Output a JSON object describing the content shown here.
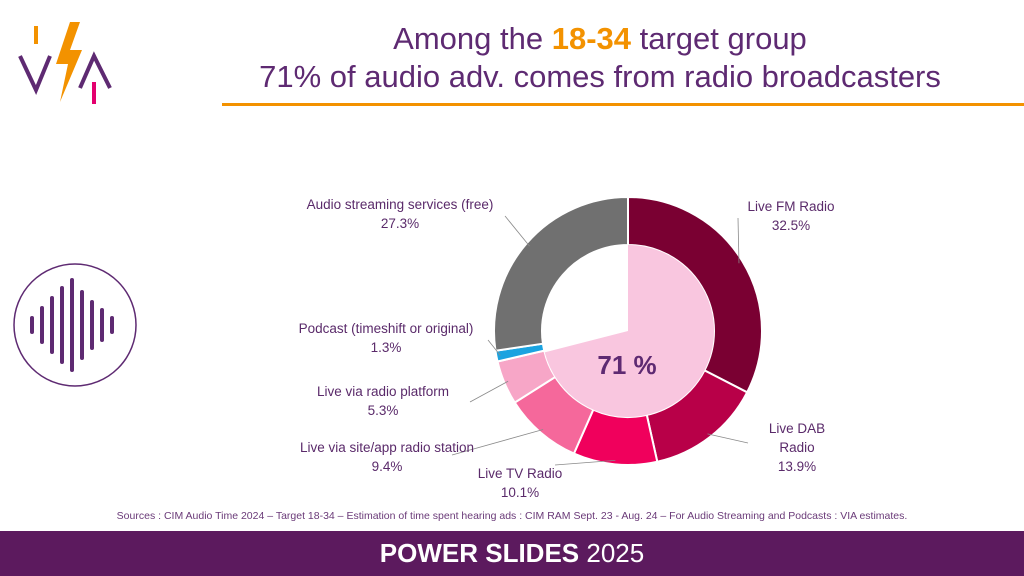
{
  "header": {
    "title_line1_pre": "Among the ",
    "title_line1_highlight": "18-34",
    "title_line1_post": " target group",
    "title_line2": "71% of audio adv. comes from radio broadcasters"
  },
  "chart_data": {
    "type": "pie",
    "donut": true,
    "center_label": "71 %",
    "center_highlight_share": 71,
    "slices": [
      {
        "name": "Live FM Radio",
        "value": 32.5,
        "value_label": "32.5%",
        "color": "#7a0032"
      },
      {
        "name": "Live DAB Radio",
        "value": 13.9,
        "value_label": "13.9%",
        "color": "#b80048"
      },
      {
        "name": "Live TV Radio",
        "value": 10.1,
        "value_label": "10.1%",
        "color": "#f0005c"
      },
      {
        "name": "Live via site/app radio station",
        "value": 9.4,
        "value_label": "9.4%",
        "color": "#f5689b"
      },
      {
        "name": "Live via radio platform",
        "value": 5.3,
        "value_label": "5.3%",
        "color": "#f7a6c7"
      },
      {
        "name": "Podcast (timeshift or original)",
        "value": 1.3,
        "value_label": "1.3%",
        "color": "#1aa3e0"
      },
      {
        "name": "Audio streaming services (free)",
        "value": 27.3,
        "value_label": "27.3%",
        "color": "#707070"
      }
    ],
    "inner_fill_color": "#f9c6df"
  },
  "sources": "Sources : CIM Audio Time 2024 – Target 18-34 – Estimation of time spent hearing ads : CIM RAM Sept. 23 - Aug. 24 – For Audio Streaming and Podcasts : VIA estimates.",
  "footer": {
    "bold": "POWER SLIDES",
    "year": "2025"
  },
  "colors": {
    "brand_purple": "#5c1a5e",
    "accent_orange": "#f39200"
  },
  "icons": {
    "logo": "via-logo",
    "sound_wave": "sound-wave-icon"
  }
}
